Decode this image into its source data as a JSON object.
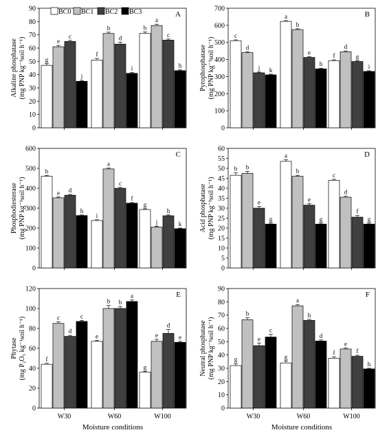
{
  "legend": [
    "BC0",
    "BC1",
    "BC2",
    "BC3"
  ],
  "colors": {
    "BC0": "#ffffff",
    "BC1": "#c0c0c0",
    "BC2": "#404040",
    "BC3": "#000000"
  },
  "x_axis_title": "Moisture conditions",
  "chart_data": [
    {
      "type": "bar",
      "panel": "A",
      "ylabel_line1": "Alkaline phosphatase",
      "ylabel_line2": "(mg PNP kg⁻¹soil h⁻¹)",
      "ylim": [
        0,
        90
      ],
      "yticks": [
        0,
        10,
        20,
        30,
        40,
        50,
        60,
        70,
        80,
        90
      ],
      "categories": [
        "W30",
        "W60",
        "W100"
      ],
      "series": [
        {
          "name": "BC0",
          "values": [
            47,
            51,
            71
          ],
          "errors": [
            1.2,
            1.2,
            1.2
          ],
          "labels": [
            "g",
            "f",
            "b"
          ]
        },
        {
          "name": "BC1",
          "values": [
            61,
            71,
            77
          ],
          "errors": [
            1.0,
            1.0,
            1.0
          ],
          "labels": [
            "e",
            "b",
            "a"
          ]
        },
        {
          "name": "BC2",
          "values": [
            65,
            63,
            66
          ],
          "errors": [
            0.8,
            1.5,
            0.8
          ],
          "labels": [
            "c",
            "d",
            "c"
          ]
        },
        {
          "name": "BC3",
          "values": [
            35,
            41,
            43
          ],
          "errors": [
            0.6,
            0.6,
            0.6
          ],
          "labels": [
            "j",
            "i",
            "h"
          ]
        }
      ]
    },
    {
      "type": "bar",
      "panel": "B",
      "ylabel_line1": "Pyrophosphatase",
      "ylabel_line2": "(mg PNP kg⁻¹soil h⁻¹)",
      "ylim": [
        0,
        700
      ],
      "yticks": [
        0,
        100,
        200,
        300,
        400,
        500,
        600,
        700
      ],
      "categories": [
        "W30",
        "W60",
        "W100"
      ],
      "series": [
        {
          "name": "BC0",
          "values": [
            510,
            623,
            393
          ],
          "errors": [
            5,
            5,
            5
          ],
          "labels": [
            "c",
            "a",
            "f"
          ]
        },
        {
          "name": "BC1",
          "values": [
            440,
            575,
            445
          ],
          "errors": [
            5,
            5,
            5
          ],
          "labels": [
            "d",
            "b",
            "d"
          ]
        },
        {
          "name": "BC2",
          "values": [
            322,
            412,
            388
          ],
          "errors": [
            4,
            4,
            4
          ],
          "labels": [
            "j",
            "e",
            "g"
          ]
        },
        {
          "name": "BC3",
          "values": [
            310,
            345,
            330
          ],
          "errors": [
            4,
            4,
            4
          ],
          "labels": [
            "k",
            "h",
            "i"
          ]
        }
      ]
    },
    {
      "type": "bar",
      "panel": "C",
      "ylabel_line1": "Phosphodiesterase",
      "ylabel_line2": "(mg PNP kg⁻¹soil h⁻¹)",
      "ylim": [
        0,
        600
      ],
      "yticks": [
        0,
        100,
        200,
        300,
        400,
        500,
        600
      ],
      "categories": [
        "W30",
        "W60",
        "W100"
      ],
      "series": [
        {
          "name": "BC0",
          "values": [
            460,
            238,
            293
          ],
          "errors": [
            4,
            4,
            4
          ],
          "labels": [
            "b",
            "i",
            "g"
          ]
        },
        {
          "name": "BC1",
          "values": [
            352,
            497,
            205
          ],
          "errors": [
            4,
            4,
            4
          ],
          "labels": [
            "e",
            "a",
            "j"
          ]
        },
        {
          "name": "BC2",
          "values": [
            365,
            400,
            262
          ],
          "errors": [
            4,
            4,
            4
          ],
          "labels": [
            "d",
            "c",
            "h"
          ]
        },
        {
          "name": "BC3",
          "values": [
            263,
            325,
            197
          ],
          "errors": [
            3,
            3,
            3
          ],
          "labels": [
            "h",
            "f",
            "k"
          ]
        }
      ]
    },
    {
      "type": "bar",
      "panel": "D",
      "ylabel_line1": "Acid phosphatase",
      "ylabel_line2": "(mg PNP kg⁻¹soil h⁻¹)",
      "ylim": [
        0,
        60
      ],
      "yticks": [
        0,
        5,
        10,
        15,
        20,
        25,
        30,
        35,
        40,
        45,
        50,
        55,
        60
      ],
      "categories": [
        "W30",
        "W60",
        "W100"
      ],
      "series": [
        {
          "name": "BC0",
          "values": [
            46.5,
            53.5,
            44
          ],
          "errors": [
            1.2,
            0.8,
            0.5
          ],
          "labels": [
            "b",
            "a",
            "c"
          ]
        },
        {
          "name": "BC1",
          "values": [
            47.5,
            46,
            35.5
          ],
          "errors": [
            1.0,
            0.5,
            0.5
          ],
          "labels": [
            "b",
            "b",
            "d"
          ]
        },
        {
          "name": "BC2",
          "values": [
            30,
            31.5,
            25.5
          ],
          "errors": [
            0.8,
            0.8,
            0.8
          ],
          "labels": [
            "e",
            "e",
            "f"
          ]
        },
        {
          "name": "BC3",
          "values": [
            22,
            22,
            22
          ],
          "errors": [
            0.5,
            0.5,
            0.5
          ],
          "labels": [
            "g",
            "g",
            "g"
          ]
        }
      ]
    },
    {
      "type": "bar",
      "panel": "E",
      "ylabel_line1": "Phytase",
      "ylabel_line2": "(mg P₂O₅ kg⁻¹soil h⁻¹)",
      "ylim": [
        0,
        120
      ],
      "yticks": [
        0,
        20,
        40,
        60,
        80,
        100,
        120
      ],
      "categories": [
        "W30",
        "W60",
        "W100"
      ],
      "series": [
        {
          "name": "BC0",
          "values": [
            44,
            67,
            36
          ],
          "errors": [
            1.0,
            1.0,
            1.0
          ],
          "labels": [
            "f",
            "e",
            "g"
          ]
        },
        {
          "name": "BC1",
          "values": [
            85,
            100,
            67
          ],
          "errors": [
            1.5,
            3,
            2
          ],
          "labels": [
            "c",
            "b",
            "e"
          ]
        },
        {
          "name": "BC2",
          "values": [
            72,
            100,
            75
          ],
          "errors": [
            1.0,
            2,
            4
          ],
          "labels": [
            "d",
            "b",
            "d"
          ]
        },
        {
          "name": "BC3",
          "values": [
            87,
            107,
            66
          ],
          "errors": [
            1.0,
            1.5,
            1.0
          ],
          "labels": [
            "c",
            "a",
            "e"
          ]
        }
      ]
    },
    {
      "type": "bar",
      "panel": "F",
      "ylabel_line1": "Neutral phosphatase",
      "ylabel_line2": "(mg PNP kg⁻¹soil h⁻¹)",
      "ylim": [
        0,
        90
      ],
      "yticks": [
        0,
        10,
        20,
        30,
        40,
        50,
        60,
        70,
        80,
        90
      ],
      "categories": [
        "W30",
        "W60",
        "W100"
      ],
      "series": [
        {
          "name": "BC0",
          "values": [
            32,
            34,
            37.5
          ],
          "errors": [
            1.5,
            1.5,
            1.0
          ],
          "labels": [
            "g",
            "g",
            "f"
          ]
        },
        {
          "name": "BC1",
          "values": [
            66.5,
            77,
            44.5
          ],
          "errors": [
            1.5,
            1.0,
            0.8
          ],
          "labels": [
            "b",
            "a",
            "e"
          ]
        },
        {
          "name": "BC2",
          "values": [
            47,
            66,
            39
          ],
          "errors": [
            2,
            0.8,
            0.8
          ],
          "labels": [
            "e",
            "b",
            "f"
          ]
        },
        {
          "name": "BC3",
          "values": [
            53.5,
            50.5,
            29.5
          ],
          "errors": [
            2,
            0.8,
            0.5
          ],
          "labels": [
            "c",
            "d",
            "h"
          ]
        }
      ]
    }
  ]
}
